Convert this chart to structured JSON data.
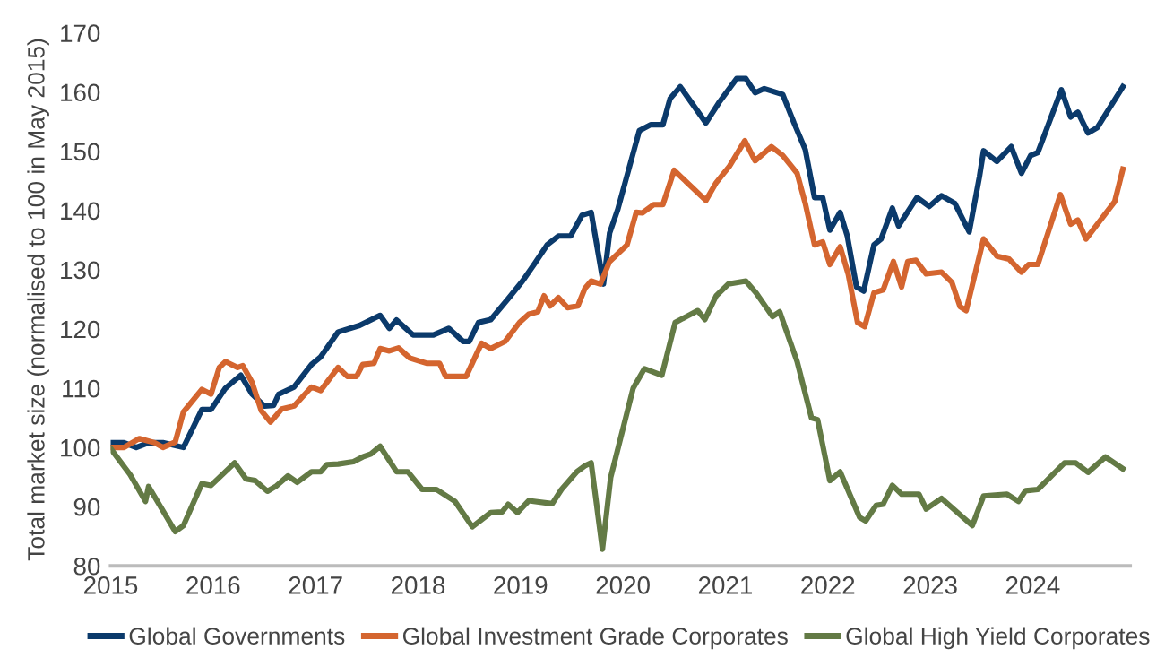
{
  "chart_data": {
    "type": "line",
    "ylabel": "Total market size (normalised to 100 in May 2015)",
    "xlim": [
      2015,
      2024.95
    ],
    "xticks": [
      2015,
      2016,
      2017,
      2018,
      2019,
      2020,
      2021,
      2022,
      2023,
      2024
    ],
    "ylim": [
      80,
      170
    ],
    "yticks": [
      80,
      90,
      100,
      110,
      120,
      130,
      140,
      150,
      160,
      170
    ],
    "grid": false,
    "legend": "bottom",
    "marker": "none",
    "line_style": "solid",
    "series": [
      {
        "name": "Global Governments",
        "color": "#0b3a6b",
        "x": [
          2015.0,
          2015.13,
          2015.25,
          2015.37,
          2015.51,
          2015.71,
          2015.89,
          2015.98,
          2016.12,
          2016.27,
          2016.38,
          2016.5,
          2016.59,
          2016.64,
          2016.79,
          2016.96,
          2017.05,
          2017.22,
          2017.43,
          2017.63,
          2017.72,
          2017.79,
          2017.95,
          2018.15,
          2018.3,
          2018.44,
          2018.5,
          2018.59,
          2018.71,
          2018.88,
          2019.02,
          2019.14,
          2019.26,
          2019.37,
          2019.49,
          2019.6,
          2019.69,
          2019.81,
          2019.87,
          2019.95,
          2020.16,
          2020.27,
          2020.39,
          2020.46,
          2020.56,
          2020.81,
          2020.94,
          2021.11,
          2021.2,
          2021.29,
          2021.38,
          2021.56,
          2021.67,
          2021.78,
          2021.87,
          2021.95,
          2022.02,
          2022.12,
          2022.19,
          2022.28,
          2022.35,
          2022.45,
          2022.52,
          2022.63,
          2022.69,
          2022.87,
          2022.99,
          2023.11,
          2023.24,
          2023.38,
          2023.48,
          2023.52,
          2023.65,
          2023.79,
          2023.89,
          2023.98,
          2024.05,
          2024.28,
          2024.37,
          2024.44,
          2024.54,
          2024.63,
          2024.88
        ],
        "values": [
          100.8,
          100.8,
          100,
          100.8,
          100.8,
          100,
          106.4,
          106.4,
          110,
          112.2,
          109,
          107,
          107.1,
          109,
          110.2,
          114,
          115.3,
          119.5,
          120.6,
          122.3,
          120.1,
          121.5,
          119,
          119,
          120.1,
          117.9,
          117.9,
          121.1,
          121.6,
          125.1,
          128.1,
          131.1,
          134.2,
          135.7,
          135.7,
          139.2,
          139.7,
          127.6,
          136.2,
          140.2,
          153.5,
          154.5,
          154.5,
          158.9,
          160.9,
          154.8,
          158.3,
          162.3,
          162.3,
          159.9,
          160.6,
          159.6,
          154.8,
          150.3,
          142.2,
          142.2,
          136.7,
          139.7,
          135.7,
          127.1,
          126.4,
          134.2,
          135.2,
          140.4,
          137.4,
          142.2,
          140.7,
          142.5,
          141.2,
          136.4,
          145.7,
          150.1,
          148.3,
          150.8,
          146.3,
          149.3,
          149.8,
          160.4,
          155.8,
          156.6,
          153.1,
          154,
          160.9
        ]
      },
      {
        "name": "Global Investment Grade Corporates",
        "color": "#d4652f",
        "x": [
          2015.0,
          2015.13,
          2015.28,
          2015.43,
          2015.51,
          2015.63,
          2015.71,
          2015.89,
          2015.98,
          2016.06,
          2016.12,
          2016.24,
          2016.29,
          2016.38,
          2016.47,
          2016.56,
          2016.67,
          2016.79,
          2016.96,
          2017.05,
          2017.22,
          2017.31,
          2017.4,
          2017.46,
          2017.57,
          2017.63,
          2017.72,
          2017.81,
          2017.92,
          2018.01,
          2018.09,
          2018.21,
          2018.27,
          2018.47,
          2018.62,
          2018.71,
          2018.85,
          2018.99,
          2019.08,
          2019.17,
          2019.23,
          2019.29,
          2019.37,
          2019.46,
          2019.56,
          2019.63,
          2019.69,
          2019.78,
          2019.87,
          2020.04,
          2020.13,
          2020.19,
          2020.3,
          2020.39,
          2020.5,
          2020.81,
          2020.91,
          2021.04,
          2021.19,
          2021.29,
          2021.45,
          2021.56,
          2021.7,
          2021.78,
          2021.87,
          2021.95,
          2022.02,
          2022.12,
          2022.2,
          2022.29,
          2022.36,
          2022.45,
          2022.54,
          2022.64,
          2022.72,
          2022.78,
          2022.86,
          2022.96,
          2023.11,
          2023.21,
          2023.29,
          2023.35,
          2023.52,
          2023.65,
          2023.77,
          2023.89,
          2023.96,
          2024.05,
          2024.27,
          2024.37,
          2024.44,
          2024.52,
          2024.8,
          2024.88
        ],
        "values": [
          100,
          100,
          101.5,
          100.8,
          100,
          100.9,
          106,
          109.8,
          109,
          113.5,
          114.5,
          113.5,
          113.8,
          111,
          106.2,
          104.3,
          106.5,
          107,
          110.2,
          109.6,
          113.5,
          112,
          112,
          114,
          114.2,
          116.7,
          116.3,
          116.8,
          115.1,
          114.6,
          114.2,
          114.2,
          112,
          112,
          117.6,
          116.7,
          117.9,
          121.1,
          122.5,
          122.9,
          125.6,
          123.9,
          125.3,
          123.6,
          123.9,
          126.9,
          128.1,
          127.6,
          131.4,
          134.2,
          139.7,
          139.6,
          141,
          141,
          146.8,
          141.7,
          144.7,
          147.5,
          151.8,
          148.4,
          150.8,
          149.3,
          146.3,
          141.2,
          134.2,
          134.7,
          130.9,
          133.9,
          129.2,
          121.1,
          120.4,
          126.1,
          126.6,
          131.4,
          127.1,
          131.4,
          131.6,
          129.3,
          129.6,
          127.9,
          123.8,
          123.1,
          135.2,
          132.3,
          131.8,
          129.6,
          130.9,
          130.9,
          142.7,
          137.7,
          138.4,
          135.2,
          141.5,
          147
        ]
      },
      {
        "name": "Global High Yield Corporates",
        "color": "#637a45",
        "x": [
          2015.0,
          2015.19,
          2015.34,
          2015.37,
          2015.63,
          2015.71,
          2015.89,
          2015.98,
          2016.21,
          2016.32,
          2016.41,
          2016.53,
          2016.61,
          2016.73,
          2016.82,
          2016.96,
          2017.05,
          2017.11,
          2017.22,
          2017.37,
          2017.46,
          2017.54,
          2017.63,
          2017.79,
          2017.9,
          2018.04,
          2018.18,
          2018.36,
          2018.53,
          2018.71,
          2018.82,
          2018.88,
          2018.97,
          2019.08,
          2019.31,
          2019.4,
          2019.55,
          2019.63,
          2019.69,
          2019.8,
          2019.88,
          2020.1,
          2020.21,
          2020.38,
          2020.51,
          2020.62,
          2020.73,
          2020.8,
          2020.91,
          2021.03,
          2021.2,
          2021.3,
          2021.46,
          2021.53,
          2021.7,
          2021.84,
          2021.9,
          2022.02,
          2022.12,
          2022.31,
          2022.37,
          2022.47,
          2022.54,
          2022.63,
          2022.72,
          2022.89,
          2022.96,
          2023.11,
          2023.41,
          2023.52,
          2023.75,
          2023.86,
          2023.93,
          2024.05,
          2024.31,
          2024.42,
          2024.54,
          2024.71,
          2024.88
        ],
        "values": [
          99.8,
          95.4,
          90.9,
          93.4,
          85.8,
          86.8,
          93.9,
          93.6,
          97.4,
          94.7,
          94.4,
          92.6,
          93.4,
          95.2,
          94.1,
          95.9,
          95.9,
          97.1,
          97.2,
          97.6,
          98.4,
          98.9,
          100.2,
          95.9,
          95.9,
          92.9,
          92.9,
          90.9,
          86.6,
          89,
          89.1,
          90.4,
          89,
          91,
          90.5,
          92.9,
          95.9,
          96.9,
          97.4,
          82.8,
          94.9,
          110,
          113.3,
          112.2,
          121.1,
          122.1,
          123.1,
          121.6,
          125.6,
          127.6,
          128.1,
          126.1,
          122.1,
          122.9,
          114.5,
          105,
          104.7,
          94.4,
          95.9,
          88.2,
          87.6,
          90.2,
          90.4,
          93.6,
          92.1,
          92.1,
          89.6,
          91.4,
          86.8,
          91.8,
          92.1,
          90.9,
          92.7,
          92.9,
          97.4,
          97.4,
          95.8,
          98.4,
          96.4
        ]
      }
    ]
  }
}
